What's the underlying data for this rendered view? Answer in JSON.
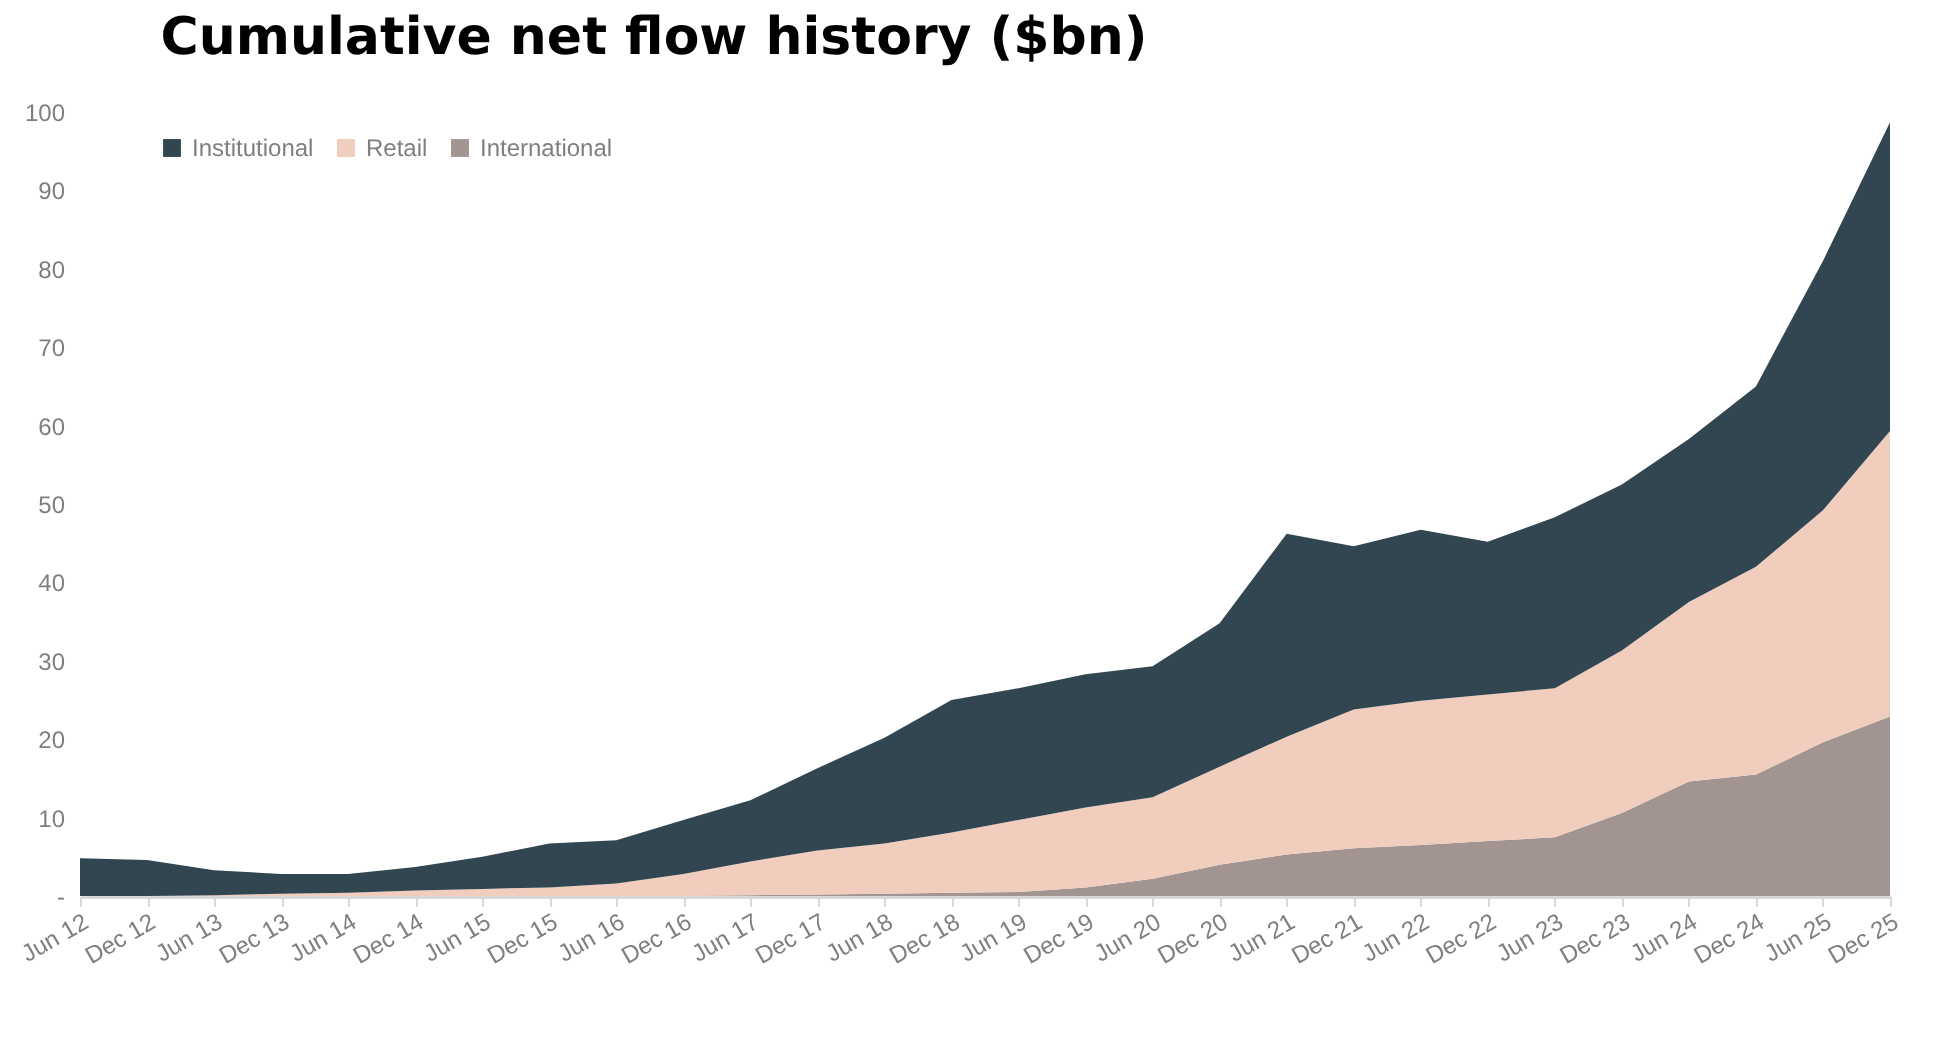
{
  "chart_data": {
    "type": "area",
    "title": "Cumulative net flow history ($bn)",
    "categories": [
      "Jun 12",
      "Dec 12",
      "Jun 13",
      "Dec 13",
      "Jun 14",
      "Dec 14",
      "Jun 15",
      "Dec 15",
      "Jun 16",
      "Dec 16",
      "Jun 17",
      "Dec 17",
      "Jun 18",
      "Dec 18",
      "Jun 19",
      "Dec 19",
      "Jun 20",
      "Dec 20",
      "Jun 21",
      "Dec 21",
      "Jun 22",
      "Dec 22",
      "Jun 23",
      "Dec 23",
      "Jun 24",
      "Dec 24",
      "Jun 25",
      "Dec 25"
    ],
    "stacked": true,
    "series": [
      {
        "name": "International",
        "color": "#a29490",
        "values": [
          0,
          0,
          0,
          0,
          0,
          0,
          0,
          0,
          0,
          0,
          0.1,
          0.2,
          0.3,
          0.4,
          0.5,
          1.1,
          2.2,
          4.0,
          5.3,
          6.1,
          6.5,
          7.0,
          7.5,
          10.6,
          14.6,
          15.5,
          19.6,
          22.9
        ]
      },
      {
        "name": "Retail",
        "color": "#f0cdbd",
        "values": [
          0,
          0,
          0.1,
          0.3,
          0.4,
          0.7,
          0.9,
          1.1,
          1.6,
          2.8,
          4.3,
          5.6,
          6.4,
          7.7,
          9.2,
          10.2,
          10.4,
          12.5,
          15.0,
          17.7,
          18.4,
          18.7,
          19.0,
          20.7,
          22.9,
          26.5,
          29.6,
          36.4
        ]
      },
      {
        "name": "Institutional",
        "color": "#324651",
        "values": [
          4.8,
          4.6,
          3.2,
          2.5,
          2.4,
          3.0,
          4.1,
          5.6,
          5.5,
          6.9,
          7.8,
          10.5,
          13.5,
          16.9,
          16.8,
          17.0,
          16.7,
          18.3,
          25.9,
          20.8,
          21.8,
          19.5,
          21.8,
          21.2,
          20.8,
          23.0,
          31.8,
          39.4
        ]
      }
    ],
    "ylim": [
      0,
      100
    ],
    "yticks": [
      {
        "value": 0,
        "label": "-"
      },
      10,
      20,
      30,
      40,
      50,
      60,
      70,
      80,
      90,
      100
    ],
    "grid": false,
    "legend": "top left"
  }
}
